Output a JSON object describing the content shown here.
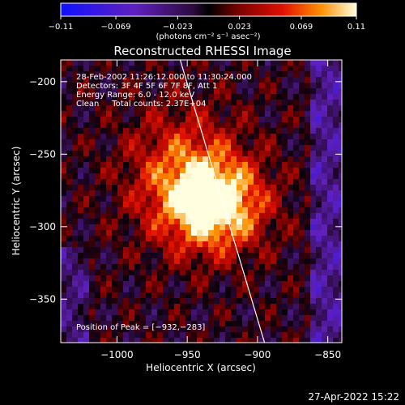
{
  "chart_data": {
    "type": "heatmap",
    "title": "Reconstructed RHESSI Image",
    "xlabel": "Heliocentric X (arcsec)",
    "ylabel": "Heliocentric Y (arcsec)",
    "xlim": [
      -1040,
      -840
    ],
    "ylim": [
      -380,
      -185
    ],
    "x_ticks": [
      -1000,
      -950,
      -900,
      -850
    ],
    "x_tick_labels": [
      "−1000",
      "−950",
      "−900",
      "−850"
    ],
    "y_ticks": [
      -200,
      -250,
      -300,
      -350
    ],
    "y_tick_labels": [
      "−200",
      "−250",
      "−300",
      "−350"
    ],
    "colorbar": {
      "range": [
        -0.11,
        0.11
      ],
      "ticks": [
        -0.11,
        -0.069,
        -0.023,
        0.023,
        0.069,
        0.11
      ],
      "tick_labels": [
        "−0.11",
        "−0.069",
        "−0.023",
        "0.023",
        "0.069",
        "0.11"
      ],
      "unit_label": "(photons cm⁻² s⁻¹ asec⁻²)"
    },
    "annotations": [
      "28-Feb-2002 11:26:12.000 to 11:30:24.000",
      "Detectors: 3F 4F 5F 6F 7F 8F, Att 1",
      "Energy Range: 6.0 - 12.0 keV",
      "Clean     Total counts: 2.37E+04"
    ],
    "peak_label": "Position of Peak = [−932,−283]",
    "peak_position": [
      -932,
      -283
    ],
    "limb_line": [
      [
        -955,
        -185
      ],
      [
        -895,
        -380
      ]
    ],
    "grid": false
  },
  "footer": {
    "timestamp": "27-Apr-2022 15:22"
  }
}
